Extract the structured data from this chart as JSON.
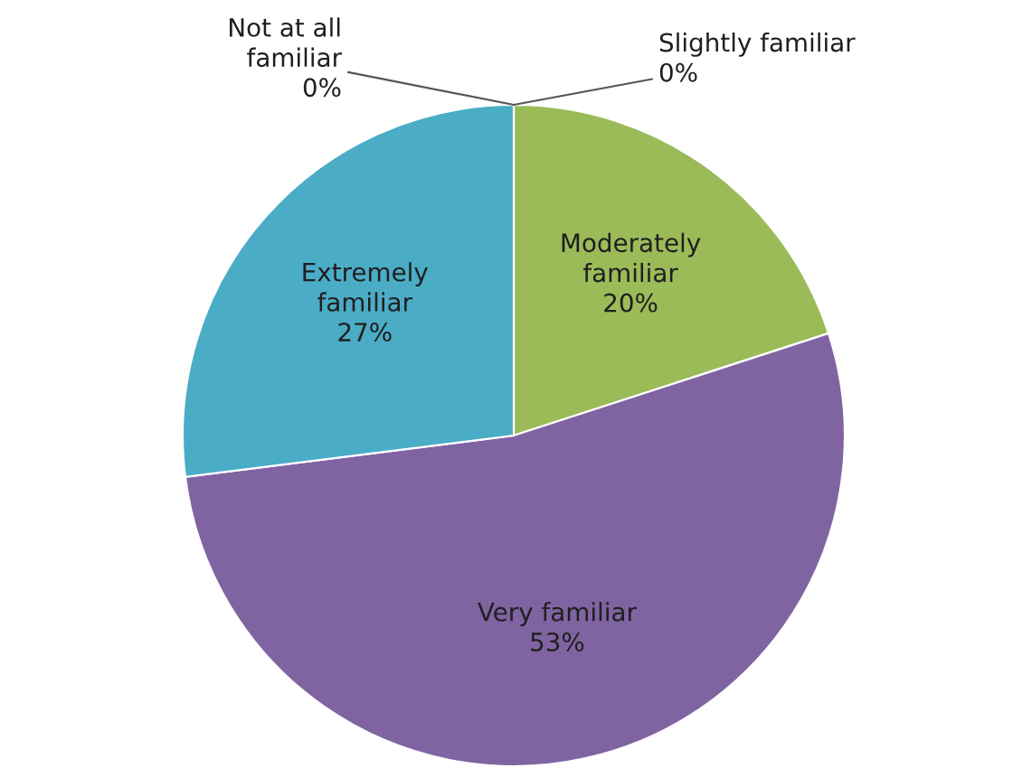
{
  "chart_data": {
    "type": "pie",
    "categories": [
      "Not at all\nfamiliar",
      "Slightly familiar",
      "Moderately\nfamiliar",
      "Very familiar",
      "Extremely\nfamiliar"
    ],
    "values": [
      0,
      0,
      20,
      53,
      27
    ],
    "colors": [
      "#4f81bd",
      "#c0504d",
      "#9bbb59",
      "#8064a2",
      "#4bacc6"
    ],
    "value_labels": [
      "0%",
      "0%",
      "20%",
      "53%",
      "27%"
    ]
  }
}
